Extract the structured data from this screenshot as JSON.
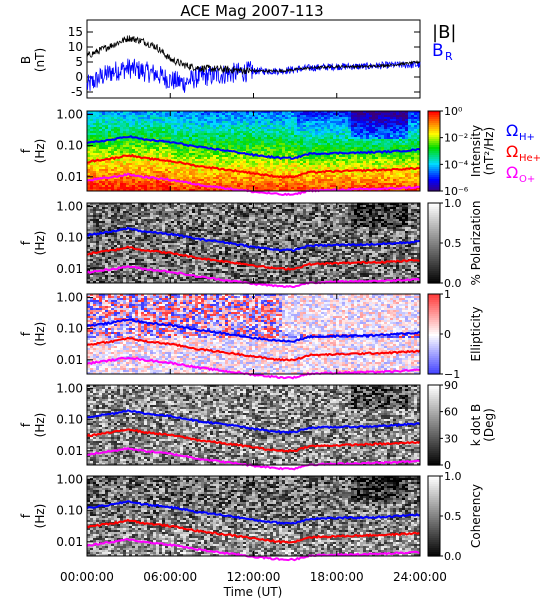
{
  "title": "ACE Mag 2007-113",
  "x_axis": {
    "label": "Time (UT)",
    "ticks": [
      "00:00:00",
      "06:00:00",
      "12:00:00",
      "18:00:00",
      "24:00:00"
    ],
    "tick_hours": [
      0,
      6,
      12,
      18,
      24
    ],
    "range_hours": [
      0,
      24
    ]
  },
  "colors": {
    "B_total": "#000000",
    "B_R": "#0000ff",
    "H_plus": "#0000ff",
    "He_plus": "#ff0000",
    "O_plus": "#ff00ff"
  },
  "mag_panel": {
    "ylabel": [
      "B",
      "(nT)"
    ],
    "yticks": [
      "15",
      "10",
      "5",
      "0",
      "-5"
    ],
    "ytick_values": [
      15,
      10,
      5,
      0,
      -5
    ],
    "yrange": [
      -7,
      19
    ],
    "legend": {
      "total_prefix": "|B|",
      "radial_base": "B",
      "radial_sub": "R"
    }
  },
  "freq_yaxis": {
    "ylabel": [
      "f",
      "(Hz)"
    ],
    "ticks": [
      "1.00",
      "0.10",
      "0.01"
    ],
    "tick_values": [
      1.0,
      0.1,
      0.01
    ],
    "range": [
      0.0035,
      1.3
    ],
    "scale": "log"
  },
  "gyro_legend": [
    {
      "symbol": "Ω",
      "sub": "H+",
      "color": "#0000ff"
    },
    {
      "symbol": "Ω",
      "sub": "He+",
      "color": "#ff0000"
    },
    {
      "symbol": "Ω",
      "sub": "O+",
      "color": "#ff00ff"
    }
  ],
  "spectral_panels": [
    {
      "name": "intensity",
      "colorbar": "rainbow",
      "cb_label": [
        "Intensity",
        "(nT²/Hz)"
      ],
      "cb_ticks": [
        "10⁰",
        "10⁻²",
        "10⁻⁴",
        "10⁻⁶"
      ],
      "cb_tick_values": [
        0,
        0.333,
        0.667,
        1
      ]
    },
    {
      "name": "polarization",
      "colorbar": "gray",
      "cb_label": [
        "% Polarization"
      ],
      "cb_ticks": [
        "1.0",
        "0.5",
        "0.0"
      ],
      "cb_tick_values": [
        0,
        0.5,
        1
      ]
    },
    {
      "name": "ellipticity",
      "colorbar": "bwr",
      "cb_label": [
        "Ellipticity"
      ],
      "cb_ticks": [
        "1",
        "0",
        "−1"
      ],
      "cb_tick_values": [
        0,
        0.5,
        1
      ]
    },
    {
      "name": "kdotb",
      "colorbar": "gray",
      "cb_label": [
        "k dot B",
        "(Deg)"
      ],
      "cb_ticks": [
        "90",
        "60",
        "30",
        "0"
      ],
      "cb_tick_values": [
        0,
        0.333,
        0.667,
        1
      ]
    },
    {
      "name": "coherency",
      "colorbar": "gray",
      "cb_label": [
        "Coherency"
      ],
      "cb_ticks": [
        "1.0",
        "0.5",
        "0.0"
      ],
      "cb_tick_values": [
        0,
        0.5,
        1
      ]
    }
  ],
  "chart_data": [
    {
      "type": "line",
      "title": "ACE Mag 2007-113",
      "xlabel": "Time (UT)",
      "ylabel": "B (nT)",
      "ylim": [
        -7,
        19
      ],
      "series": [
        {
          "name": "|B|",
          "x_hours": [
            0,
            1,
            2,
            3,
            4,
            5,
            6,
            7,
            8,
            10,
            12,
            14,
            16,
            18,
            20,
            22,
            24
          ],
          "values": [
            7,
            9,
            11,
            13,
            12,
            10,
            6,
            4,
            3,
            2.5,
            2,
            2,
            3,
            3.5,
            3.5,
            4,
            5
          ]
        },
        {
          "name": "B_R",
          "x_hours": [
            0,
            1,
            2,
            3,
            4,
            5,
            6,
            7,
            8,
            10,
            12,
            14,
            16,
            18,
            20,
            22,
            24
          ],
          "values": [
            -3,
            0,
            2,
            3,
            2,
            1,
            -1,
            -2,
            0,
            1,
            2,
            2,
            3,
            3.5,
            3.5,
            4,
            4
          ]
        }
      ]
    },
    {
      "type": "line",
      "xlabel": "Time (UT)",
      "ylabel": "f (Hz)",
      "yscale": "log",
      "ylim": [
        0.0035,
        1.3
      ],
      "series": [
        {
          "name": "ΩH+",
          "x_hours": [
            0,
            2,
            3,
            4,
            6,
            8,
            10,
            12,
            13,
            14,
            15,
            16,
            18,
            20,
            22,
            24
          ],
          "values": [
            0.12,
            0.16,
            0.2,
            0.16,
            0.13,
            0.09,
            0.07,
            0.05,
            0.045,
            0.04,
            0.04,
            0.055,
            0.058,
            0.06,
            0.065,
            0.075
          ]
        },
        {
          "name": "ΩHe+",
          "x_hours": [
            0,
            2,
            3,
            4,
            6,
            8,
            10,
            12,
            13,
            14,
            15,
            16,
            18,
            20,
            22,
            24
          ],
          "values": [
            0.03,
            0.04,
            0.05,
            0.04,
            0.032,
            0.022,
            0.017,
            0.013,
            0.011,
            0.01,
            0.01,
            0.014,
            0.015,
            0.016,
            0.017,
            0.019
          ]
        },
        {
          "name": "ΩO+",
          "x_hours": [
            0,
            2,
            3,
            4,
            6,
            8,
            10,
            12,
            13,
            14,
            15,
            16,
            18,
            20,
            22,
            24
          ],
          "values": [
            0.0075,
            0.01,
            0.012,
            0.01,
            0.008,
            0.0056,
            0.0043,
            0.0033,
            0.003,
            0.0027,
            0.0027,
            0.0036,
            0.0038,
            0.004,
            0.0042,
            0.0047
          ]
        }
      ]
    }
  ]
}
